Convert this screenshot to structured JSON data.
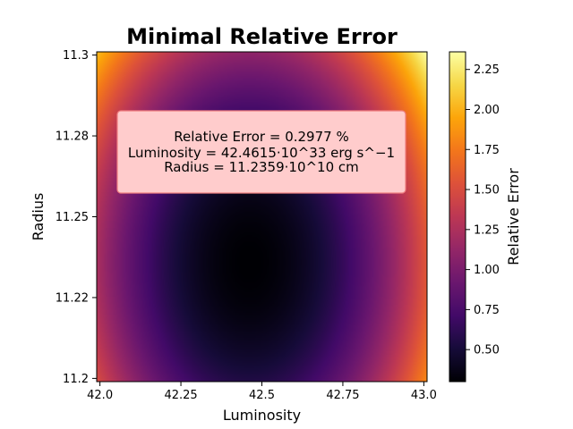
{
  "chart_data": {
    "type": "heatmap",
    "title": "Minimal Relative Error",
    "xlabel": "Luminosity",
    "ylabel": "Radius",
    "xlim": [
      41.99,
      43.01
    ],
    "ylim": [
      11.199,
      11.301
    ],
    "x_ticks": [
      42.0,
      42.25,
      42.5,
      42.75,
      43.0
    ],
    "x_tick_labels": [
      "42.0",
      "42.25",
      "42.5",
      "42.75",
      "43.0"
    ],
    "y_ticks": [
      11.2,
      11.225,
      11.25,
      11.275,
      11.3
    ],
    "y_tick_labels": [
      "11.2",
      "11.22",
      "11.25",
      "11.28",
      "11.3"
    ],
    "colorbar": {
      "label": "Relative Error",
      "range": [
        0.3,
        2.36
      ],
      "ticks": [
        0.5,
        0.75,
        1.0,
        1.25,
        1.5,
        1.75,
        2.0,
        2.25
      ],
      "tick_labels": [
        "0.50",
        "0.75",
        "1.00",
        "1.25",
        "1.50",
        "1.75",
        "2.00",
        "2.25"
      ],
      "colormap": "inferno"
    },
    "minimum": {
      "x": 42.4615,
      "y": 11.2359,
      "value": 0.2977
    },
    "annotation": {
      "lines": [
        "Relative Error = 0.2977 %",
        "Luminosity = 42.4615·10^33 erg s^−1",
        "Radius = 11.2359·10^10 cm"
      ],
      "box_color": "#ffcccc",
      "border_color": "#f08080"
    },
    "grid": false
  }
}
